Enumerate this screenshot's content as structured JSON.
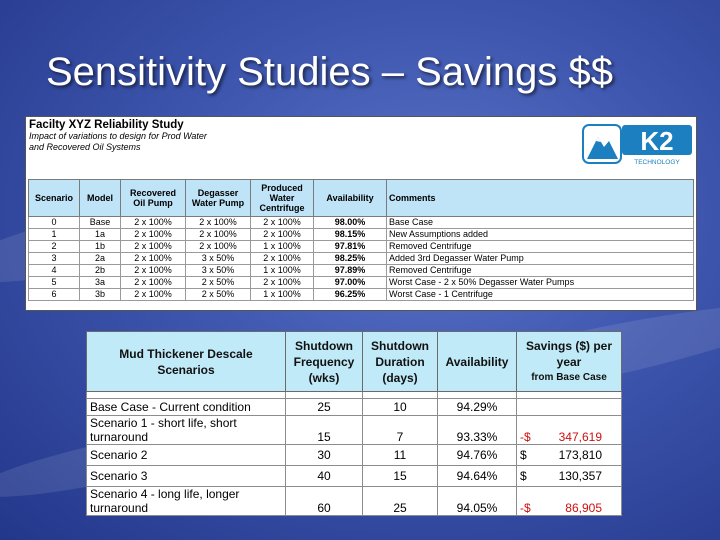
{
  "slide": {
    "title": "Sensitivity Studies – Savings $$"
  },
  "study": {
    "title": "Facilty XYZ Reliability Study",
    "subtitle_line1": "Impact of variations to design for Prod Water",
    "subtitle_line2": "and Recovered Oil Systems",
    "logo": {
      "text": "K2",
      "sub": "TECHNOLOGY",
      "icon": "mountain-logo-icon"
    },
    "headers": [
      "Scenario",
      "Model",
      "Recovered Oil Pump",
      "Degasser Water Pump",
      "Produced Water Centrifuge",
      "Availability",
      "Comments"
    ],
    "rows": [
      {
        "scenario": "0",
        "model": "Base",
        "oil": "2 x 100%",
        "degasser": "2 x 100%",
        "centrifuge": "2 x 100%",
        "availability": "98.00%",
        "comment": "Base Case"
      },
      {
        "scenario": "1",
        "model": "1a",
        "oil": "2 x 100%",
        "degasser": "2 x 100%",
        "centrifuge": "2 x 100%",
        "availability": "98.15%",
        "comment": "New Assumptions added"
      },
      {
        "scenario": "2",
        "model": "1b",
        "oil": "2 x 100%",
        "degasser": "2 x 100%",
        "centrifuge": "1 x 100%",
        "availability": "97.81%",
        "comment": "Removed Centrifuge"
      },
      {
        "scenario": "3",
        "model": "2a",
        "oil": "2 x 100%",
        "degasser": "3 x 50%",
        "centrifuge": "2 x 100%",
        "availability": "98.25%",
        "comment": "Added 3rd Degasser Water Pump"
      },
      {
        "scenario": "4",
        "model": "2b",
        "oil": "2 x 100%",
        "degasser": "3 x 50%",
        "centrifuge": "1 x 100%",
        "availability": "97.89%",
        "comment": "Removed Centrifuge"
      },
      {
        "scenario": "5",
        "model": "3a",
        "oil": "2 x 100%",
        "degasser": "2 x 50%",
        "centrifuge": "2 x 100%",
        "availability": "97.00%",
        "comment": "Worst Case - 2 x 50% Degasser Water Pumps"
      },
      {
        "scenario": "6",
        "model": "3b",
        "oil": "2 x 100%",
        "degasser": "2 x 50%",
        "centrifuge": "1 x 100%",
        "availability": "96.25%",
        "comment": "Worst Case - 1 Centrifuge"
      }
    ]
  },
  "mud": {
    "headers": {
      "scenarios": "Mud Thickener Descale Scenarios",
      "frequency": "Shutdown Frequency (wks)",
      "duration": "Shutdown Duration (days)",
      "availability": "Availability",
      "savings": "Savings ($) per year",
      "savings_sub": "from Base Case"
    },
    "rows": [
      {
        "scenario": "Base Case - Current condition",
        "frequency": "25",
        "duration": "10",
        "availability": "94.29%",
        "currency": "",
        "amount": "",
        "negative": false
      },
      {
        "scenario": "Scenario 1 - short life, short turnaround",
        "frequency": "15",
        "duration": "7",
        "availability": "93.33%",
        "currency": "-$",
        "amount": "347,619",
        "negative": true
      },
      {
        "scenario": "Scenario 2",
        "frequency": "30",
        "duration": "11",
        "availability": "94.76%",
        "currency": "$",
        "amount": "173,810",
        "negative": false
      },
      {
        "scenario": "Scenario 3",
        "frequency": "40",
        "duration": "15",
        "availability": "94.64%",
        "currency": "$",
        "amount": "130,357",
        "negative": false
      },
      {
        "scenario": "Scenario 4 - long life, longer turnaround",
        "frequency": "60",
        "duration": "25",
        "availability": "94.05%",
        "currency": "-$",
        "amount": "86,905",
        "negative": true
      }
    ]
  },
  "colors": {
    "background": "#3d55ad",
    "header_fill": "#bfe3f7",
    "negative": "#cc1111"
  }
}
